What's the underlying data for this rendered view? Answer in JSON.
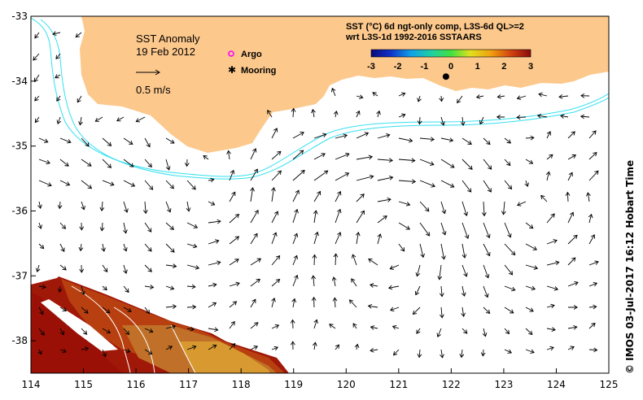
{
  "map": {
    "title": "SST Anomaly",
    "date": "19 Feb 2012",
    "scale_label": "0.5 m/s",
    "legend": {
      "argo_label": "Argo",
      "mooring_label": "Mooring",
      "argo_color": "#ff00ff",
      "mooring_color": "#000000"
    },
    "colorbar": {
      "line1": "SST (°C) 6d ngt-only comp, L3S-6d QL>=2",
      "line2": "wrt L3S-1d 1992-2016 SSTAARS",
      "ticks": [
        "-3",
        "-2",
        "-1",
        "0",
        "1",
        "2",
        "3"
      ],
      "min": -3,
      "max": 3
    },
    "credit": "© IMOS 03-Jul-2017 16:12 Hobart Time",
    "land_color": "#fcc88c",
    "contour_color": "#33e0f0",
    "xaxis": {
      "ticks": [
        "114",
        "115",
        "116",
        "117",
        "118",
        "119",
        "120",
        "121",
        "122",
        "123",
        "124",
        "125"
      ],
      "range": [
        114,
        125
      ]
    },
    "yaxis": {
      "ticks": [
        "-33",
        "-34",
        "-35",
        "-36",
        "-37",
        "-38"
      ],
      "range": [
        -38.5,
        -33
      ]
    },
    "moorings": [
      {
        "lon": 121.9,
        "lat": -33.93
      }
    ]
  }
}
